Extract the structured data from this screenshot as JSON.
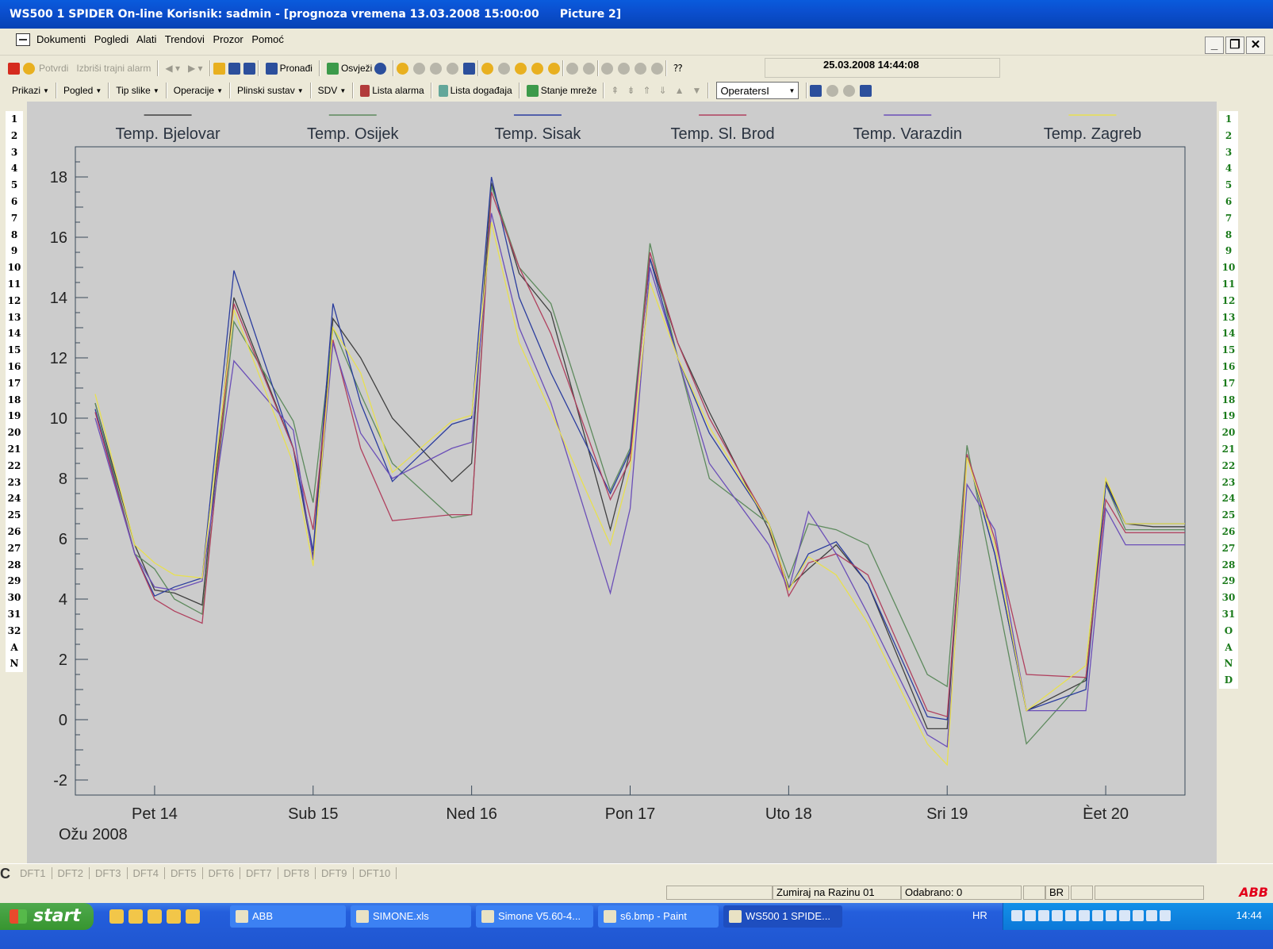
{
  "window": {
    "title": "WS500 1 SPIDER On-line Korisnik: sadmin - [prognoza vremena 13.03.2008 15:00:00",
    "title_suffix": "Picture 2]"
  },
  "menubar": {
    "items": [
      "Dokumenti",
      "Pogledi",
      "Alati",
      "Trendovi",
      "Prozor",
      "Pomoć"
    ]
  },
  "toolbar1": {
    "confirm_label": "Potvrdi",
    "delete_alarm_label": "Izbriši trajni alarm",
    "find_label": "Pronađi",
    "refresh_label": "Osvježi",
    "datetime": "25.03.2008 14:44:08"
  },
  "toolbar2": {
    "menus": [
      "Prikazi",
      "Pogled",
      "Tip slike",
      "Operacije",
      "Plinski sustav",
      "SDV"
    ],
    "alarm_list_label": "Lista alarma",
    "event_list_label": "Lista događaja",
    "network_state_label": "Stanje mreže",
    "operator_select_value": "OperatersI"
  },
  "side_left": [
    "1",
    "2",
    "3",
    "4",
    "5",
    "6",
    "7",
    "8",
    "9",
    "10",
    "11",
    "12",
    "13",
    "14",
    "15",
    "16",
    "17",
    "18",
    "19",
    "20",
    "21",
    "22",
    "23",
    "24",
    "25",
    "26",
    "27",
    "28",
    "29",
    "30",
    "31",
    "32",
    "A",
    "N"
  ],
  "side_right": [
    "1",
    "2",
    "3",
    "4",
    "5",
    "6",
    "7",
    "8",
    "9",
    "10",
    "11",
    "12",
    "13",
    "14",
    "15",
    "16",
    "17",
    "18",
    "19",
    "20",
    "21",
    "22",
    "23",
    "24",
    "25",
    "26",
    "27",
    "28",
    "29",
    "30",
    "31",
    "O",
    "A",
    "N",
    "D"
  ],
  "chart_data": {
    "type": "line",
    "title": "",
    "xlabel": "Ožu 2008",
    "ylabel": "",
    "ylim": [
      -2.5,
      19
    ],
    "xlim": [
      -0.5,
      6.5
    ],
    "yticks": [
      -2,
      0,
      2,
      4,
      6,
      8,
      10,
      12,
      14,
      16,
      18
    ],
    "xticks": [
      0,
      1,
      2,
      3,
      4,
      5,
      6
    ],
    "xtick_labels": [
      "Pet 14",
      "Sub 15",
      "Ned 16",
      "Pon 17",
      "Uto 18",
      "Sri 19",
      "Èet 20"
    ],
    "legend_position": "top",
    "grid": false,
    "x": [
      -0.375,
      -0.125,
      0.0,
      0.125,
      0.3,
      0.5,
      0.875,
      1.0,
      1.125,
      1.3,
      1.5,
      1.875,
      2.0,
      2.125,
      2.3,
      2.5,
      2.875,
      3.0,
      3.125,
      3.3,
      3.5,
      3.875,
      4.0,
      4.125,
      4.3,
      4.5,
      4.875,
      5.0,
      5.125,
      5.3,
      5.5,
      5.875,
      6.0,
      6.125,
      6.3,
      6.5
    ],
    "series": [
      {
        "name": "Temp. Bjelovar",
        "color": "#404040",
        "values": [
          10.5,
          5.8,
          4.3,
          4.2,
          3.8,
          14.0,
          9.0,
          5.4,
          13.3,
          12.0,
          10.0,
          7.9,
          8.5,
          17.8,
          14.8,
          13.5,
          6.3,
          8.9,
          15.3,
          12.5,
          10.2,
          6.3,
          4.4,
          5.0,
          5.8,
          4.5,
          -0.3,
          -0.3,
          8.8,
          5.5,
          0.3,
          1.3,
          7.9,
          6.5,
          6.4,
          6.4
        ]
      },
      {
        "name": "Temp. Osijek",
        "color": "#5d8a5d",
        "values": [
          10.5,
          5.5,
          5.0,
          4.0,
          3.5,
          13.2,
          9.9,
          7.2,
          13.0,
          10.8,
          8.5,
          6.7,
          6.8,
          17.7,
          15.0,
          13.8,
          7.6,
          9.0,
          15.8,
          12.0,
          8.0,
          6.5,
          4.7,
          6.5,
          6.3,
          5.8,
          1.5,
          1.1,
          9.1,
          4.5,
          -0.8,
          1.4,
          7.8,
          6.3,
          6.3,
          6.3
        ]
      },
      {
        "name": "Temp. Sisak",
        "color": "#2b3d9e",
        "values": [
          10.3,
          5.5,
          4.1,
          4.4,
          4.7,
          14.9,
          9.0,
          5.6,
          13.8,
          10.5,
          7.9,
          9.8,
          10.0,
          18.0,
          14.0,
          11.5,
          7.5,
          8.9,
          15.3,
          12.0,
          9.5,
          6.5,
          4.3,
          5.5,
          5.9,
          4.5,
          0.1,
          0.0,
          8.8,
          5.5,
          0.3,
          1.0,
          7.8,
          6.5,
          6.5,
          6.5
        ]
      },
      {
        "name": "Temp. Sl. Brod",
        "color": "#b0405e",
        "values": [
          10.2,
          5.5,
          4.0,
          3.6,
          3.2,
          13.8,
          9.0,
          6.3,
          12.6,
          9.0,
          6.6,
          6.8,
          6.8,
          17.5,
          15.0,
          12.8,
          7.3,
          8.6,
          15.5,
          12.5,
          10.0,
          6.5,
          4.1,
          5.2,
          5.5,
          4.8,
          0.3,
          0.1,
          8.8,
          6.0,
          1.5,
          1.4,
          7.3,
          6.2,
          6.2,
          6.2
        ]
      },
      {
        "name": "Temp. Varazdin",
        "color": "#6b4fb8",
        "values": [
          10.0,
          5.5,
          4.4,
          4.3,
          4.6,
          11.9,
          9.6,
          5.3,
          12.5,
          9.5,
          8.0,
          9.0,
          9.2,
          16.8,
          13.0,
          10.5,
          4.2,
          7.0,
          15.0,
          12.0,
          8.5,
          5.8,
          4.3,
          6.9,
          5.5,
          3.5,
          -0.5,
          -0.9,
          7.8,
          6.3,
          0.3,
          0.3,
          7.0,
          5.8,
          5.8,
          5.8
        ]
      },
      {
        "name": "Temp. Zagreb",
        "color": "#e8e050",
        "values": [
          10.8,
          5.8,
          5.2,
          4.8,
          4.7,
          13.6,
          8.5,
          5.1,
          13.0,
          11.5,
          8.2,
          9.9,
          10.1,
          16.5,
          12.5,
          10.2,
          5.8,
          8.3,
          14.5,
          12.0,
          9.7,
          6.5,
          4.3,
          5.4,
          4.8,
          3.2,
          -0.8,
          -1.5,
          8.7,
          5.8,
          0.3,
          1.8,
          8.0,
          6.5,
          6.5,
          6.5
        ]
      }
    ]
  },
  "bottom_tabs": [
    "DFT1",
    "DFT2",
    "DFT3",
    "DFT4",
    "DFT5",
    "DFT6",
    "DFT7",
    "DFT8",
    "DFT9",
    "DFT10"
  ],
  "statusbar": {
    "zoom_text": "Zumiraj na Razinu 01",
    "selected_text": "Odabrano: 0",
    "br_text": "BR",
    "brand": "ABB"
  },
  "taskbar": {
    "start_label": "start",
    "tasks": [
      "ABB",
      "SIMONE.xls",
      "Simone V5.60-4...",
      "s6.bmp - Paint",
      "WS500 1 SPIDE..."
    ],
    "language": "HR",
    "clock": "14:44"
  }
}
